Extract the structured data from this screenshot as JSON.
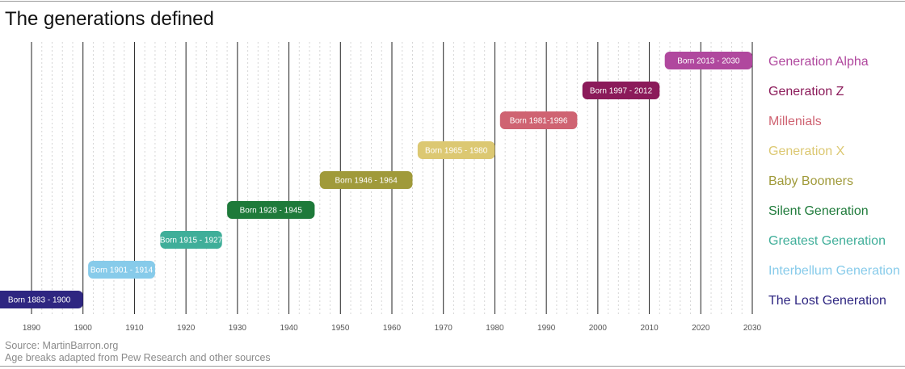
{
  "chart_data": {
    "type": "timeline",
    "title": "The generations defined",
    "xlim": [
      1890,
      2030
    ],
    "x_ticks": [
      "1890",
      "1900",
      "1910",
      "1920",
      "1930",
      "1940",
      "1950",
      "1960",
      "1970",
      "1980",
      "1990",
      "2000",
      "2010",
      "2020",
      "2030"
    ],
    "grid": true,
    "items": [
      {
        "name": "Generation Alpha",
        "start": 2013,
        "end": 2030,
        "label": "Born 2013 - 2030",
        "color": "#b0489e"
      },
      {
        "name": "Generation Z",
        "start": 1997,
        "end": 2012,
        "label": "Born 1997 - 2012",
        "color": "#8b1a5a"
      },
      {
        "name": "Millenials",
        "start": 1981,
        "end": 1996,
        "label": "Born 1981-1996",
        "color": "#cf6372"
      },
      {
        "name": "Generation X",
        "start": 1965,
        "end": 1980,
        "label": "Born 1965 - 1980",
        "color": "#dcc872"
      },
      {
        "name": "Baby Boomers",
        "start": 1946,
        "end": 1964,
        "label": "Born 1946 - 1964",
        "color": "#a09a3a"
      },
      {
        "name": "Silent Generation",
        "start": 1928,
        "end": 1945,
        "label": "Born 1928 - 1945",
        "color": "#1e7a3a"
      },
      {
        "name": "Greatest Generation",
        "start": 1915,
        "end": 1927,
        "label": "Born 1915 - 1927",
        "color": "#3fae99"
      },
      {
        "name": "Interbellum Generation",
        "start": 1901,
        "end": 1914,
        "label": "Born 1901 - 1914",
        "color": "#87cbea"
      },
      {
        "name": "The Lost Generation",
        "start": 1883,
        "end": 1900,
        "label": "Born 1883 - 1900",
        "color": "#2e2681"
      }
    ]
  },
  "footer": {
    "source": "Source: MartinBarron.org",
    "note": "Age breaks adapted from Pew Research and other sources"
  }
}
